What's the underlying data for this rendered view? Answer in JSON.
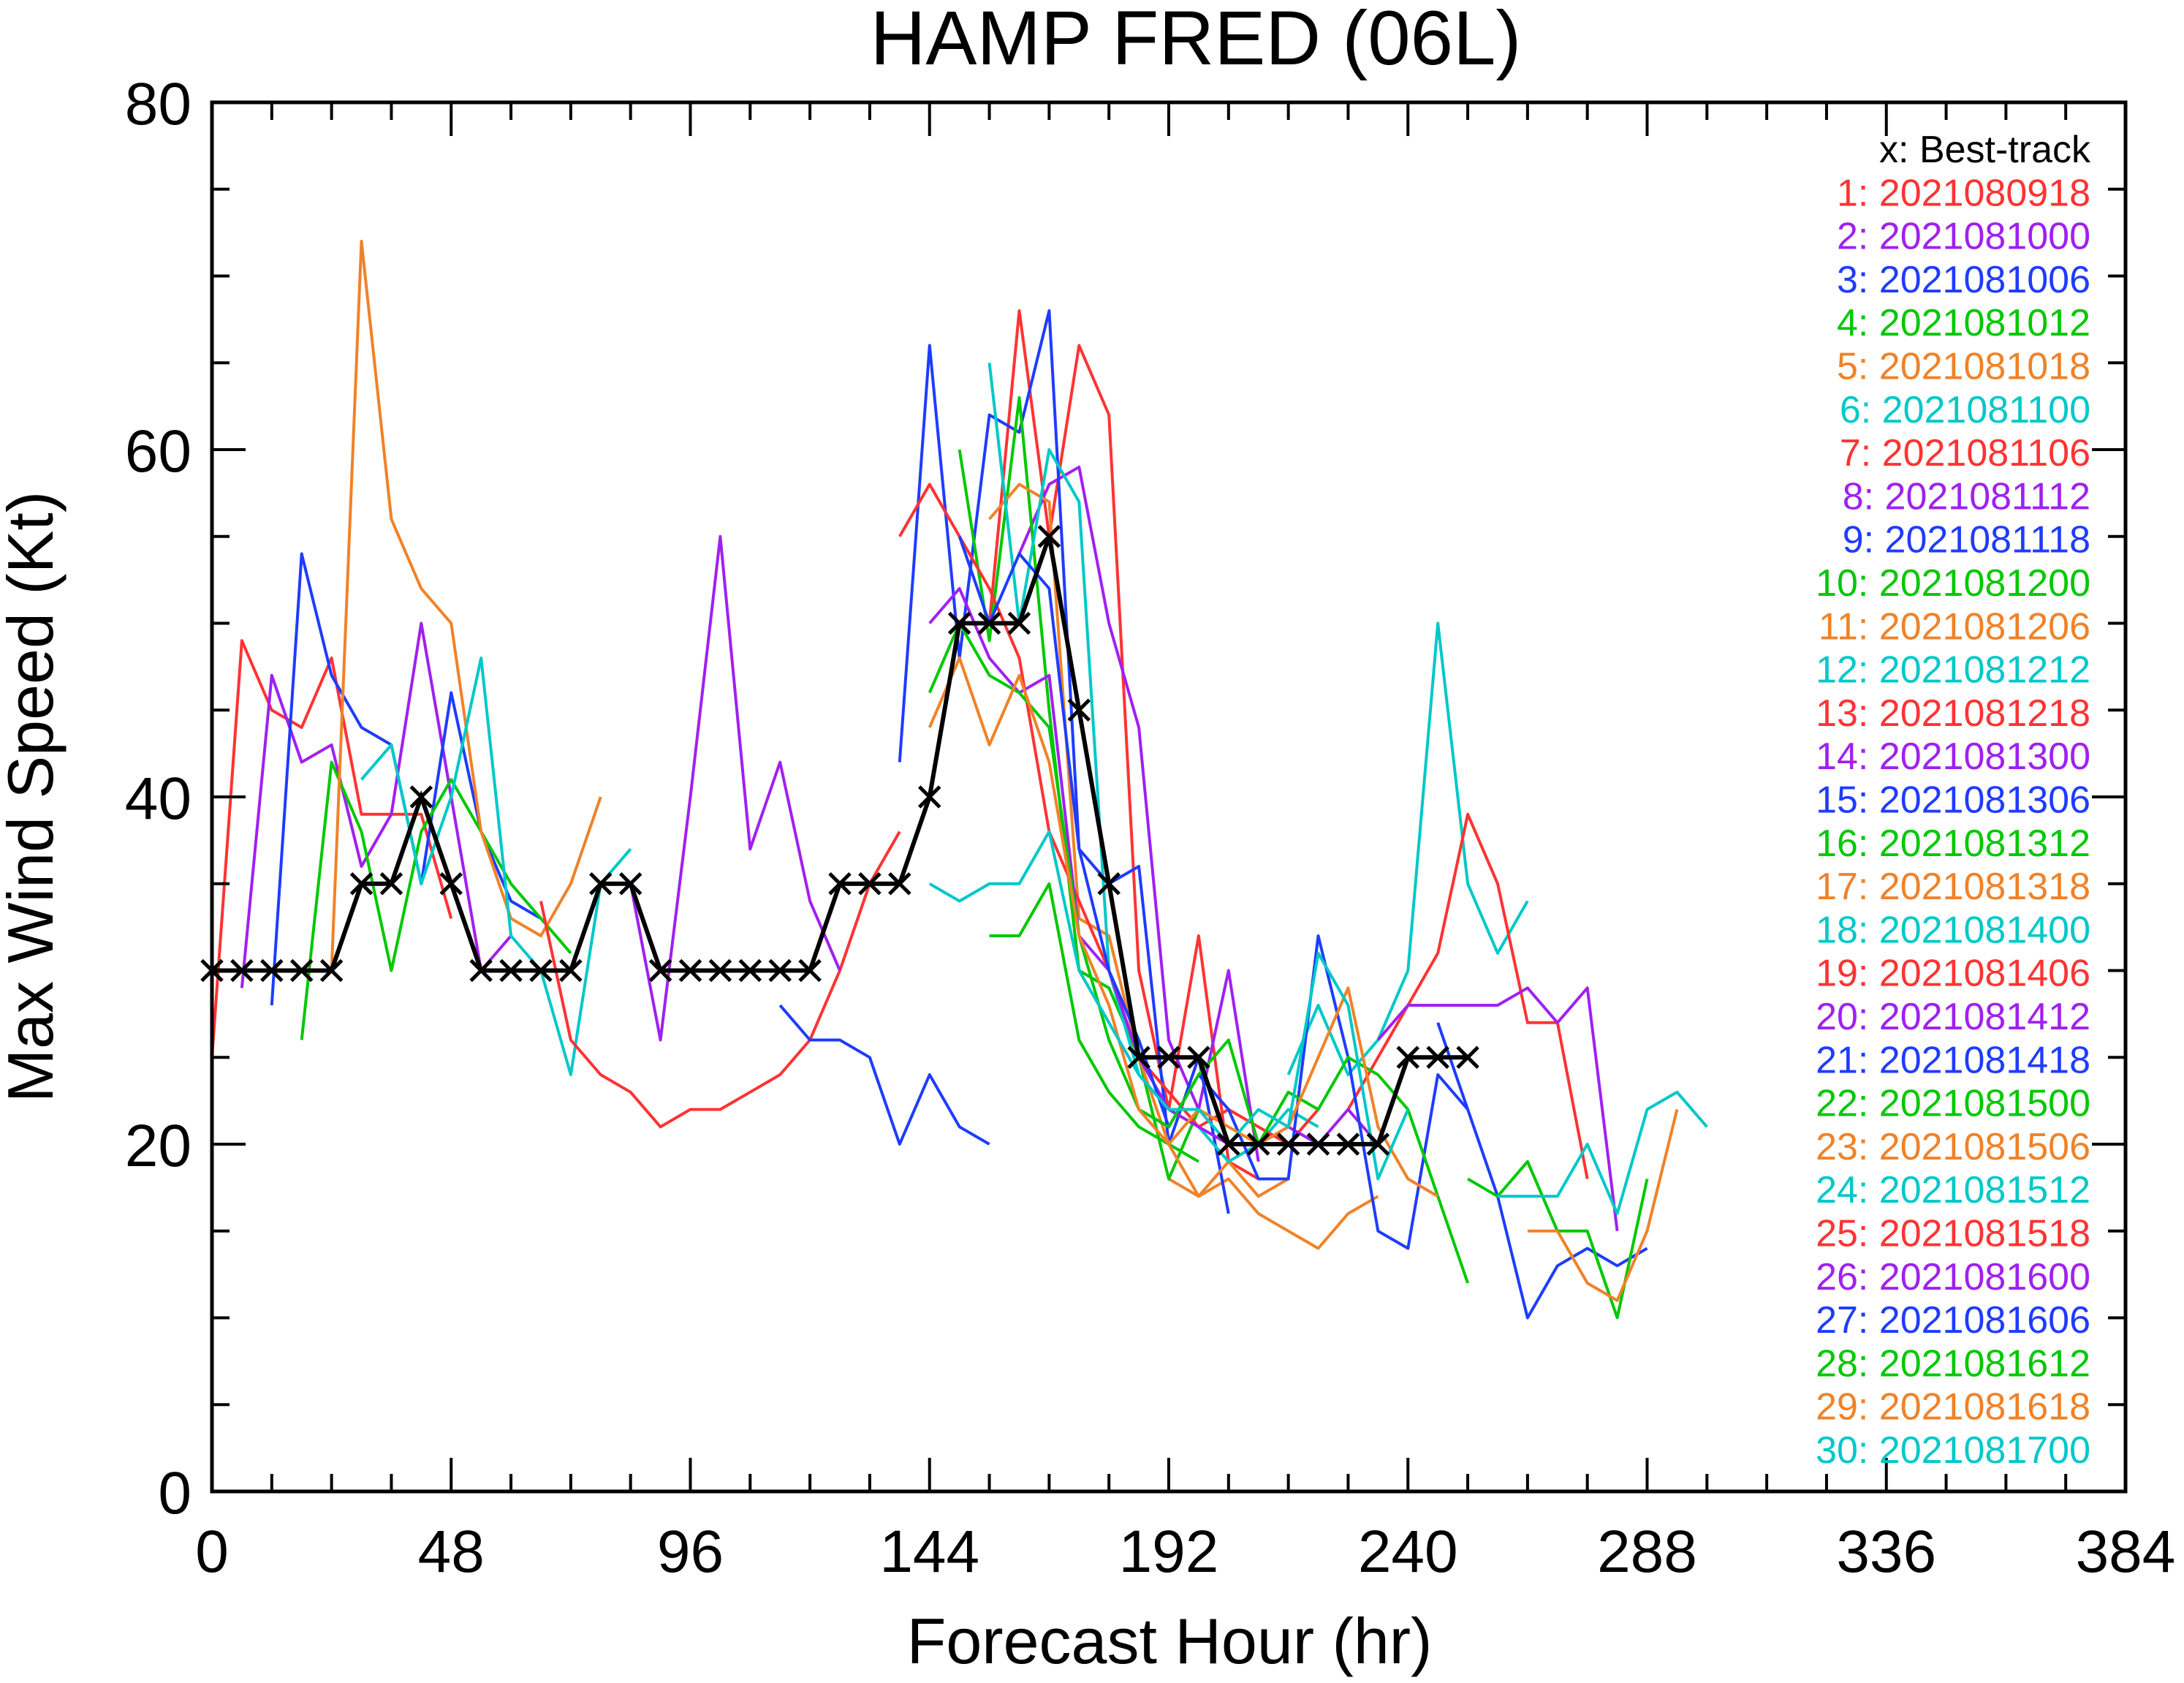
{
  "chart_data": {
    "type": "line",
    "title": "HAMP  FRED (06L)",
    "xlabel": "Forecast Hour (hr)",
    "ylabel": "Max Wind Speed (Kt)",
    "xlim": [
      0,
      384
    ],
    "ylim": [
      0,
      80
    ],
    "xticks": [
      0,
      48,
      96,
      144,
      192,
      240,
      288,
      336,
      384
    ],
    "yticks": [
      0,
      20,
      40,
      60,
      80
    ],
    "xtick_labels": [
      "0",
      "48",
      "96",
      "144",
      "192",
      "240",
      "288",
      "336",
      "384"
    ],
    "ytick_labels": [
      "0",
      "20",
      "40",
      "60",
      "80"
    ],
    "grid": false,
    "legend_position": "top-right",
    "best_track": {
      "legend_label": "x: Best-track",
      "color": "#000000",
      "x": [
        0,
        6,
        12,
        18,
        24,
        30,
        36,
        42,
        48,
        54,
        60,
        66,
        72,
        78,
        84,
        90,
        96,
        102,
        108,
        114,
        120,
        126,
        132,
        138,
        144,
        150,
        156,
        162,
        168,
        174,
        180,
        186,
        192,
        198,
        204,
        210,
        216,
        222,
        228,
        234,
        240,
        246,
        252
      ],
      "y": [
        30,
        30,
        30,
        30,
        30,
        35,
        35,
        40,
        35,
        30,
        30,
        30,
        30,
        35,
        35,
        30,
        30,
        30,
        30,
        30,
        30,
        35,
        35,
        35,
        40,
        50,
        50,
        50,
        55,
        45,
        35,
        25,
        25,
        25,
        20,
        20,
        20,
        20,
        20,
        20,
        25,
        25,
        25
      ]
    },
    "series": [
      {
        "name": "1: 2021080918",
        "color": "#ff3333",
        "x": [
          0,
          6,
          12,
          18,
          24,
          30,
          36,
          42,
          48
        ],
        "y": [
          25,
          49,
          45,
          44,
          48,
          39,
          39,
          39,
          33
        ]
      },
      {
        "name": "2: 2021081000",
        "color": "#a020f0",
        "x": [
          6,
          12,
          18,
          24,
          30,
          36,
          42,
          48,
          54,
          60
        ],
        "y": [
          29,
          47,
          42,
          43,
          36,
          39,
          50,
          40,
          30,
          32
        ]
      },
      {
        "name": "3: 2021081006",
        "color": "#1e3cff",
        "x": [
          12,
          18,
          24,
          30,
          36,
          42,
          48,
          54,
          60,
          66
        ],
        "y": [
          28,
          54,
          47,
          44,
          43,
          35,
          46,
          38,
          34,
          33
        ]
      },
      {
        "name": "4: 2021081012",
        "color": "#00c800",
        "x": [
          18,
          24,
          30,
          36,
          42,
          48,
          54,
          60,
          66,
          72
        ],
        "y": [
          26,
          42,
          38,
          30,
          38,
          41,
          38,
          35,
          33,
          31
        ]
      },
      {
        "name": "5: 2021081018",
        "color": "#f08228",
        "x": [
          24,
          30,
          36,
          42,
          48,
          54,
          60,
          66,
          72,
          78
        ],
        "y": [
          30,
          72,
          56,
          52,
          50,
          38,
          33,
          32,
          35,
          40
        ]
      },
      {
        "name": "6: 2021081100",
        "color": "#00c8c8",
        "x": [
          30,
          36,
          42,
          48,
          54,
          60,
          66,
          72,
          78,
          84
        ],
        "y": [
          41,
          43,
          35,
          40,
          48,
          32,
          30,
          24,
          35,
          37
        ]
      },
      {
        "name": "7: 2021081106",
        "color": "#ff3333",
        "x": [
          66,
          72,
          78,
          84,
          90,
          96,
          102,
          108,
          114,
          120,
          126,
          132,
          138
        ],
        "y": [
          34,
          26,
          24,
          23,
          21,
          22,
          22,
          23,
          24,
          26,
          30,
          35,
          38
        ]
      },
      {
        "name": "8: 2021081112",
        "color": "#a020f0",
        "x": [
          84,
          90,
          96,
          102,
          108,
          114,
          120,
          126
        ],
        "y": [
          35,
          26,
          40,
          55,
          37,
          42,
          34,
          30
        ]
      },
      {
        "name": "9: 2021081118",
        "color": "#1e3cff",
        "x": [
          114,
          120,
          126,
          132,
          138,
          144,
          150,
          156
        ],
        "y": [
          28,
          26,
          26,
          25,
          20,
          24,
          21,
          20
        ]
      },
      {
        "name": "10: 2021081200",
        "color": "#00c800",
        "x": [
          156,
          162,
          168,
          174,
          180,
          186,
          192,
          198
        ],
        "y": [
          32,
          32,
          35,
          26,
          23,
          21,
          20,
          19
        ]
      },
      {
        "name": "11: 2021081206",
        "color": "#f08228",
        "x": [
          192,
          198,
          204,
          210,
          216,
          222,
          228,
          234
        ],
        "y": [
          18,
          17,
          18,
          16,
          15,
          14,
          16,
          17
        ]
      },
      {
        "name": "12: 2021081212",
        "color": "#00c8c8",
        "x": [
          216,
          222,
          228,
          234,
          240,
          246,
          252,
          258,
          264
        ],
        "y": [
          24,
          28,
          24,
          26,
          30,
          50,
          35,
          31,
          34
        ]
      },
      {
        "name": "13: 2021081218",
        "color": "#ff3333",
        "x": [
          228,
          234,
          240,
          246,
          252,
          258,
          264,
          270,
          276
        ],
        "y": [
          22,
          25,
          28,
          31,
          39,
          35,
          27,
          27,
          18
        ]
      },
      {
        "name": "14: 2021081300",
        "color": "#a020f0",
        "x": [
          234,
          240,
          246,
          252,
          258,
          264,
          270,
          276,
          282
        ],
        "y": [
          26,
          28,
          28,
          28,
          28,
          29,
          27,
          29,
          15
        ]
      },
      {
        "name": "15: 2021081306",
        "color": "#1e3cff",
        "x": [
          246,
          252,
          258,
          264,
          270,
          276,
          282,
          288
        ],
        "y": [
          27,
          22,
          17,
          10,
          13,
          14,
          13,
          14
        ]
      },
      {
        "name": "16: 2021081312",
        "color": "#00c800",
        "x": [
          252,
          258,
          264,
          270,
          276,
          282,
          288
        ],
        "y": [
          18,
          17,
          19,
          15,
          15,
          10,
          18
        ]
      },
      {
        "name": "17: 2021081318",
        "color": "#f08228",
        "x": [
          264,
          270,
          276,
          282,
          288,
          294
        ],
        "y": [
          15,
          15,
          12,
          11,
          15,
          22
        ]
      },
      {
        "name": "18: 2021081400",
        "color": "#00c8c8",
        "x": [
          258,
          264,
          270,
          276,
          282,
          288,
          294,
          300
        ],
        "y": [
          17,
          17,
          17,
          20,
          16,
          22,
          23,
          21
        ]
      },
      {
        "name": "19: 2021081406",
        "color": "#ff3333",
        "x": [
          156,
          162,
          168,
          174,
          180,
          186,
          192,
          198,
          204,
          210
        ],
        "y": [
          50,
          68,
          55,
          66,
          62,
          30,
          22,
          32,
          19,
          18
        ]
      },
      {
        "name": "20: 2021081412",
        "color": "#a020f0",
        "x": [
          162,
          168,
          174,
          180,
          186,
          192,
          198,
          204,
          210
        ],
        "y": [
          54,
          58,
          59,
          50,
          44,
          26,
          22,
          30,
          19
        ]
      },
      {
        "name": "21: 2021081418",
        "color": "#1e3cff",
        "x": [
          138,
          144,
          150,
          156,
          162,
          168,
          174,
          180,
          186,
          192,
          198,
          204
        ],
        "y": [
          42,
          66,
          48,
          62,
          61,
          68,
          37,
          35,
          36,
          20,
          25,
          16
        ]
      },
      {
        "name": "22: 2021081500",
        "color": "#00c800",
        "x": [
          150,
          156,
          162,
          168,
          174,
          180,
          186,
          192,
          198
        ],
        "y": [
          60,
          49,
          63,
          45,
          30,
          29,
          25,
          18,
          22
        ]
      },
      {
        "name": "23: 2021081506",
        "color": "#f08228",
        "x": [
          156,
          162,
          168,
          174,
          180,
          186,
          192,
          198,
          204,
          210,
          216
        ],
        "y": [
          56,
          58,
          57,
          33,
          32,
          25,
          20,
          17,
          19,
          17,
          18
        ]
      },
      {
        "name": "24: 2021081512",
        "color": "#00c8c8",
        "x": [
          156,
          162,
          168,
          174,
          180,
          186,
          192,
          198,
          204,
          210,
          216,
          222
        ],
        "y": [
          65,
          50,
          60,
          57,
          30,
          24,
          22,
          21,
          19,
          20,
          22,
          21
        ]
      },
      {
        "name": "25: 2021081518",
        "color": "#ff3333",
        "x": [
          138,
          144,
          150,
          156,
          162,
          168,
          174,
          180,
          186,
          192,
          198,
          204,
          210,
          216,
          222
        ],
        "y": [
          55,
          58,
          55,
          52,
          48,
          38,
          34,
          30,
          25,
          23,
          21,
          22,
          21,
          20,
          22
        ]
      },
      {
        "name": "26: 2021081600",
        "color": "#a020f0",
        "x": [
          144,
          150,
          156,
          162,
          168,
          174,
          180,
          186,
          192,
          198,
          204,
          210,
          216,
          222,
          228,
          234
        ],
        "y": [
          50,
          52,
          48,
          46,
          47,
          32,
          30,
          25,
          22,
          21,
          20,
          20,
          21,
          20,
          22,
          20
        ]
      },
      {
        "name": "27: 2021081606",
        "color": "#1e3cff",
        "x": [
          150,
          156,
          162,
          168,
          174,
          180,
          186,
          192,
          198,
          204,
          210,
          216,
          222,
          228,
          234,
          240,
          246,
          252
        ],
        "y": [
          55,
          50,
          54,
          52,
          37,
          30,
          26,
          21,
          24,
          22,
          18,
          18,
          32,
          25,
          15,
          14,
          24,
          22
        ]
      },
      {
        "name": "28: 2021081612",
        "color": "#00c800",
        "x": [
          144,
          150,
          156,
          162,
          168,
          174,
          180,
          186,
          192,
          198,
          204,
          210,
          216,
          222,
          228,
          234,
          240,
          246,
          252
        ],
        "y": [
          46,
          50,
          47,
          46,
          44,
          32,
          26,
          22,
          21,
          24,
          26,
          20,
          23,
          22,
          25,
          24,
          22,
          17,
          12
        ]
      },
      {
        "name": "29: 2021081618",
        "color": "#f08228",
        "x": [
          144,
          150,
          156,
          162,
          168,
          174,
          180,
          186,
          192,
          198,
          204,
          210,
          216,
          222,
          228,
          234,
          240,
          246
        ],
        "y": [
          44,
          48,
          43,
          47,
          42,
          32,
          28,
          22,
          20,
          22,
          21,
          20,
          21,
          25,
          29,
          21,
          18,
          17
        ]
      },
      {
        "name": "30: 2021081700",
        "color": "#00c8c8",
        "x": [
          144,
          150,
          156,
          162,
          168,
          174,
          180,
          186,
          192,
          198,
          204,
          210,
          216,
          222,
          228,
          234,
          240
        ],
        "y": [
          35,
          34,
          35,
          35,
          38,
          30,
          27,
          24,
          22,
          22,
          20,
          22,
          21,
          31,
          28,
          18,
          22
        ]
      }
    ]
  }
}
